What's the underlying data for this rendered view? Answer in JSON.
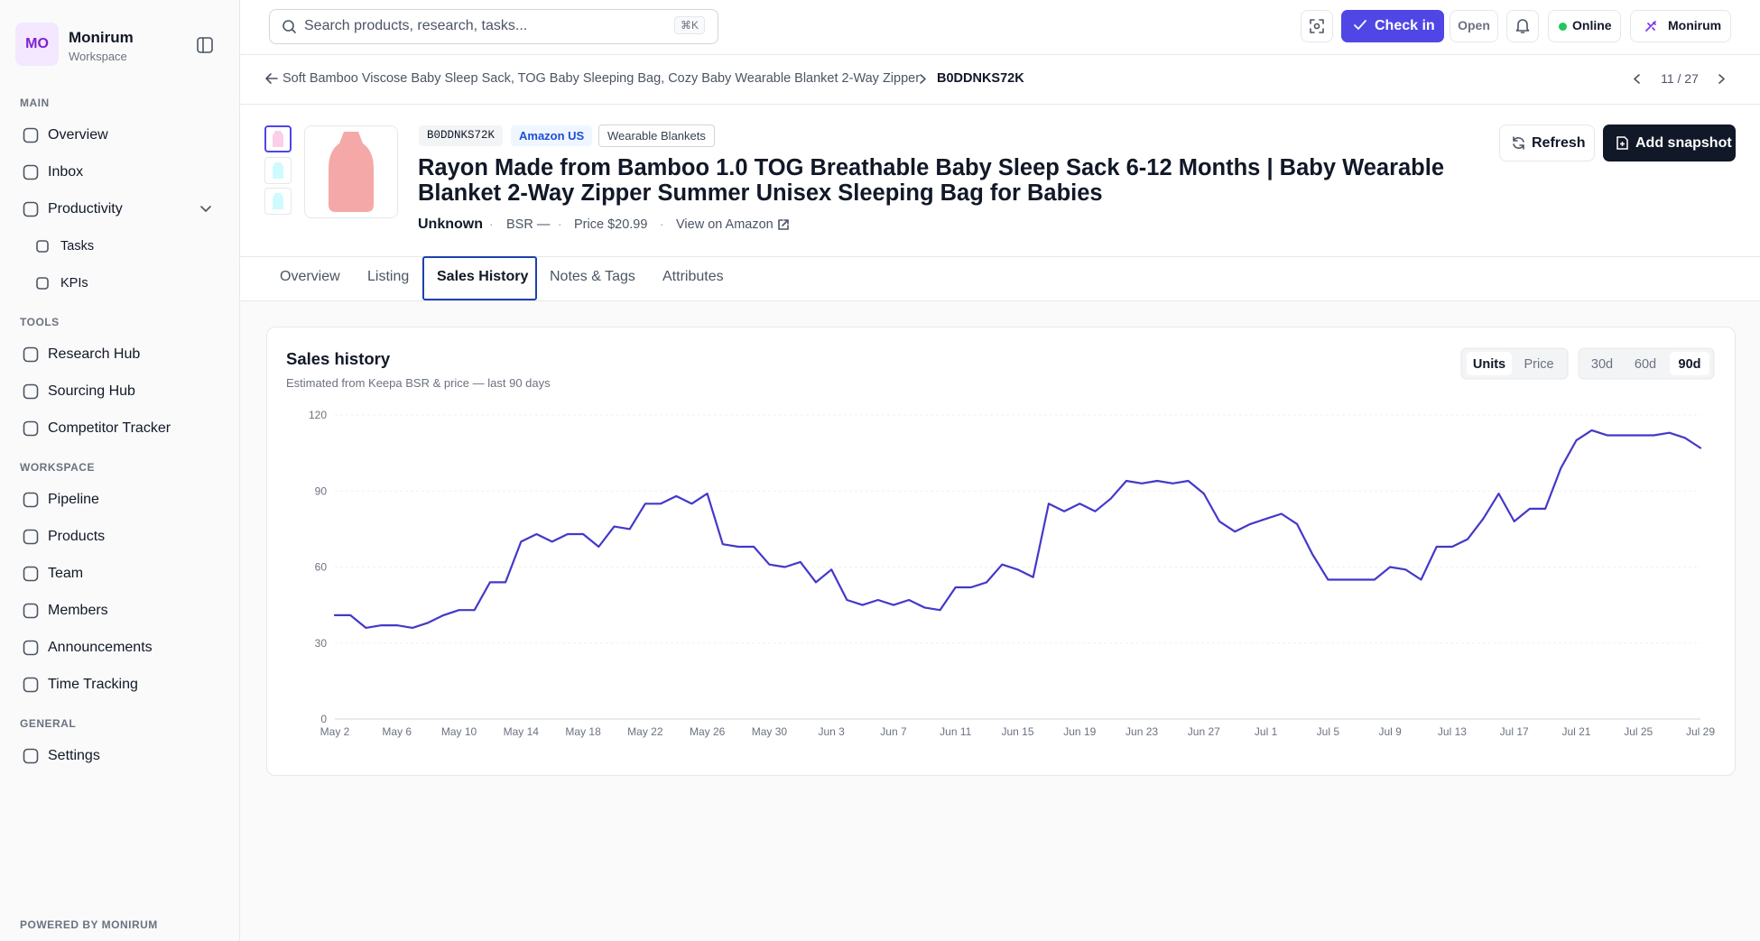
{
  "sidebar": {
    "avatar": "MO",
    "name": "Monirum",
    "workspace": "Workspace",
    "sections": [
      {
        "title": "MAIN",
        "items": [
          {
            "label": "Overview"
          },
          {
            "label": "Inbox"
          },
          {
            "label": "Productivity",
            "children": [
              "Tasks",
              "KPIs"
            ]
          }
        ]
      },
      {
        "title": "TOOLS",
        "items": [
          {
            "label": "Research Hub"
          },
          {
            "label": "Sourcing Hub"
          },
          {
            "label": "Competitor Tracker"
          }
        ]
      },
      {
        "title": "WORKSPACE",
        "items": [
          {
            "label": "Pipeline"
          },
          {
            "label": "Products"
          },
          {
            "label": "Team"
          },
          {
            "label": "Members"
          },
          {
            "label": "Announcements"
          },
          {
            "label": "Time Tracking"
          }
        ]
      },
      {
        "title": "GENERAL",
        "items": [
          {
            "label": "Settings"
          }
        ]
      }
    ],
    "footer": "POWERED BY MONIRUM"
  },
  "topbar": {
    "search_placeholder": "Search products, research, tasks...",
    "shortcut": "⌘K",
    "check_in": "Check in",
    "open": "Open",
    "status": "Online",
    "user": "Monirum"
  },
  "breadcrumb": {
    "parent": "Soft Bamboo Viscose Baby Sleep Sack, TOG Baby Sleeping Bag, Cozy Baby Wearable Blanket 2-Way Zipper",
    "current": "B0DDNKS72K",
    "position": "11 / 27"
  },
  "product": {
    "asin": "B0DDNKS72K",
    "marketplace": "Amazon US",
    "category": "Wearable Blankets",
    "title": "Rayon Made from Bamboo 1.0 TOG Breathable Baby Sleep Sack 6-12 Months | Baby Wearable Blanket 2-Way Zipper Summer Unisex Sleeping Bag for Babies",
    "brand": "Unknown",
    "bsr": "BSR —",
    "price": "Price $20.99",
    "link": "View on Amazon",
    "refresh": "Refresh",
    "snapshot": "Add snapshot"
  },
  "tabs": {
    "items": [
      "Overview",
      "Listing",
      "Sales History",
      "Notes & Tags",
      "Attributes"
    ],
    "active": 2
  },
  "chart_data": {
    "type": "line",
    "title": "Sales history",
    "subtitle": "Estimated from Keepa BSR & price — last 90 days",
    "metric_options": [
      "Units",
      "Price"
    ],
    "metric_active": 0,
    "range_options": [
      "30d",
      "60d",
      "90d"
    ],
    "range_active": 2,
    "categories": [
      "May 2",
      null,
      null,
      null,
      "May 6",
      null,
      null,
      null,
      "May 10",
      null,
      null,
      null,
      "May 14",
      null,
      null,
      null,
      "May 18",
      null,
      null,
      null,
      "May 22",
      null,
      null,
      null,
      "May 26",
      null,
      null,
      null,
      "May 30",
      null,
      null,
      null,
      "Jun 3",
      null,
      null,
      null,
      "Jun 7",
      null,
      null,
      null,
      "Jun 11",
      null,
      null,
      null,
      "Jun 15",
      null,
      null,
      null,
      "Jun 19",
      null,
      null,
      null,
      "Jun 23",
      null,
      null,
      null,
      "Jun 27",
      null,
      null,
      null,
      "Jul 1",
      null,
      null,
      null,
      "Jul 5",
      null,
      null,
      null,
      "Jul 9",
      null,
      null,
      null,
      "Jul 13",
      null,
      null,
      null,
      "Jul 17",
      null,
      null,
      null,
      "Jul 21",
      null,
      null,
      null,
      "Jul 25",
      null,
      null,
      null,
      "Jul 29"
    ],
    "values": [
      41,
      41,
      36,
      37,
      37,
      36,
      38,
      41,
      43,
      43,
      54,
      54,
      70,
      73,
      70,
      73,
      73,
      68,
      76,
      75,
      85,
      85,
      88,
      85,
      89,
      69,
      68,
      68,
      61,
      60,
      62,
      54,
      59,
      47,
      45,
      47,
      45,
      47,
      44,
      43,
      52,
      52,
      54,
      61,
      59,
      56,
      85,
      82,
      85,
      82,
      87,
      94,
      93,
      94,
      93,
      94,
      89,
      78,
      74,
      77,
      79,
      81,
      77,
      65,
      55,
      55,
      55,
      55,
      60,
      59,
      55,
      68,
      68,
      71,
      79,
      89,
      78,
      83,
      83,
      99,
      110,
      114,
      112,
      112,
      112,
      112,
      113,
      111,
      107
    ],
    "color": "#4338ca",
    "ylim": [
      0,
      120
    ],
    "yticks": [
      0,
      30,
      60,
      90,
      120
    ],
    "grid": true
  }
}
